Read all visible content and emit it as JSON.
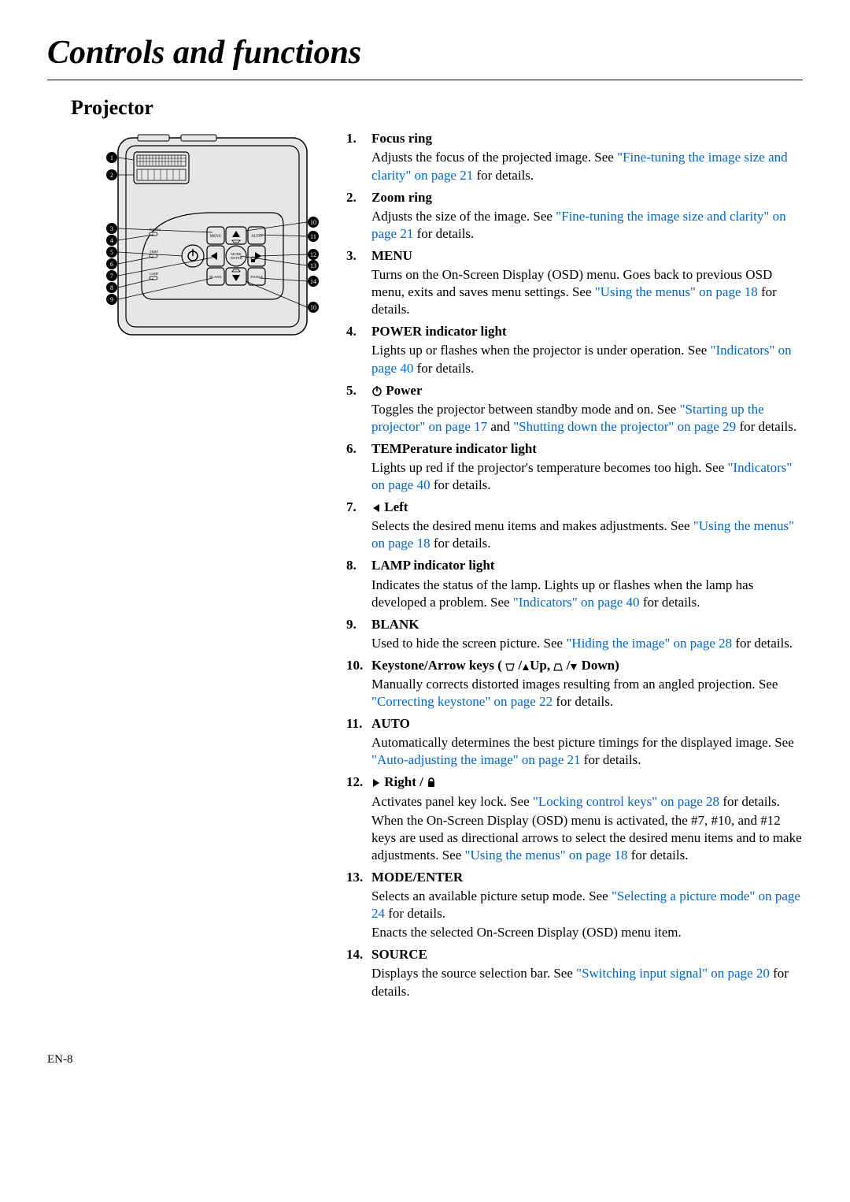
{
  "page_title": "Controls and functions",
  "subtitle": "Projector",
  "footer": "EN-8",
  "link_color": "#0066cc",
  "items": [
    {
      "num": "1",
      "title": "Focus ring",
      "body_parts": [
        {
          "t": "Adjusts the focus of the projected image. See "
        },
        {
          "t": "\"Fine-tuning the image size and clarity\" on page 21",
          "link": true
        },
        {
          "t": " for details."
        }
      ]
    },
    {
      "num": "2",
      "title": "Zoom ring",
      "body_parts": [
        {
          "t": "Adjusts the size of the image. See "
        },
        {
          "t": "\"Fine-tuning the image size and clarity\" on page 21",
          "link": true
        },
        {
          "t": " for details."
        }
      ]
    },
    {
      "num": "3",
      "title": "MENU",
      "body_parts": [
        {
          "t": "Turns on the On-Screen Display (OSD) menu. Goes back to previous OSD menu, exits and saves menu settings. See "
        },
        {
          "t": "\"Using the menus\" on page 18",
          "link": true
        },
        {
          "t": " for details."
        }
      ]
    },
    {
      "num": "4",
      "title": "POWER indicator light",
      "body_parts": [
        {
          "t": "Lights up or flashes when the projector is under operation. See "
        },
        {
          "t": "\"Indicators\" on page 40",
          "link": true
        },
        {
          "t": " for details."
        }
      ]
    },
    {
      "num": "5",
      "title_icon": "power",
      "title": "Power",
      "body_parts": [
        {
          "t": "Toggles the projector between standby mode and on. See "
        },
        {
          "t": "\"Starting up the projector\" on page 17",
          "link": true
        },
        {
          "t": " and "
        },
        {
          "t": "\"Shutting down the projector\" on page 29",
          "link": true
        },
        {
          "t": " for details."
        }
      ]
    },
    {
      "num": "6",
      "title": "TEMPerature indicator light",
      "body_parts": [
        {
          "t": "Lights up red if the projector's temperature becomes too high. See "
        },
        {
          "t": "\"Indicators\" on page 40",
          "link": true
        },
        {
          "t": " for details."
        }
      ]
    },
    {
      "num": "7",
      "title_icon": "left",
      "title": "Left",
      "body_parts": [
        {
          "t": "Selects the desired menu items and makes adjustments. See "
        },
        {
          "t": "\"Using the menus\" on page 18",
          "link": true
        },
        {
          "t": " for details."
        }
      ]
    },
    {
      "num": "8",
      "title": "LAMP indicator light",
      "body_parts": [
        {
          "t": "Indicates the status of the lamp. Lights up or flashes when the lamp has developed a problem. See "
        },
        {
          "t": "\"Indicators\" on page 40",
          "link": true
        },
        {
          "t": " for details."
        }
      ]
    },
    {
      "num": "9",
      "title": "BLANK",
      "body_parts": [
        {
          "t": "Used to hide the screen picture. See "
        },
        {
          "t": "\"Hiding the image\" on page 28",
          "link": true
        },
        {
          "t": " for details."
        }
      ]
    },
    {
      "num": "10",
      "title_icon": "keystone",
      "title": "Keystone/Arrow keys (",
      "title_trail": "Up,  ",
      "title_trail2": "Down)",
      "body_parts": [
        {
          "t": "Manually corrects distorted images resulting from an angled projection. See "
        },
        {
          "t": "\"Correcting keystone\" on page 22",
          "link": true
        },
        {
          "t": " for details."
        }
      ]
    },
    {
      "num": "11",
      "title": "AUTO",
      "body_parts": [
        {
          "t": "Automatically determines the best picture timings for the displayed image. See "
        },
        {
          "t": "\"Auto-adjusting the image\" on page 21",
          "link": true
        },
        {
          "t": " for details."
        }
      ]
    },
    {
      "num": "12",
      "title_icon": "right_lock",
      "title": "Right / ",
      "body_parts": [
        {
          "t": "Activates panel key lock. See "
        },
        {
          "t": "\"Locking control keys\" on page 28",
          "link": true
        },
        {
          "t": " for details."
        }
      ],
      "body2_parts": [
        {
          "t": "When the On-Screen Display (OSD) menu is activated, the #7, #10, and #12 keys are used as directional arrows to select the desired menu items and to make adjustments. See "
        },
        {
          "t": "\"Using the menus\" on page 18",
          "link": true
        },
        {
          "t": " for details."
        }
      ]
    },
    {
      "num": "13",
      "title": "MODE/ENTER",
      "body_parts": [
        {
          "t": "Selects an available picture setup mode. See "
        },
        {
          "t": "\"Selecting a picture mode\" on page 24",
          "link": true
        },
        {
          "t": " for details."
        }
      ],
      "body2_parts": [
        {
          "t": "Enacts the selected On-Screen Display (OSD) menu item."
        }
      ]
    },
    {
      "num": "14",
      "title": "SOURCE",
      "body_parts": [
        {
          "t": "Displays the source selection bar. See "
        },
        {
          "t": "\"Switching input signal\" on page 20",
          "link": true
        },
        {
          "t": " for details."
        }
      ]
    }
  ],
  "diagram": {
    "button_labels": [
      "MENU",
      "AUTO",
      "MODE/ENTER",
      "BLANK",
      "SOURCE",
      "POWER",
      "TEMP",
      "LAMP"
    ],
    "callouts_left": [
      "1",
      "2",
      "3",
      "4",
      "5",
      "6",
      "7",
      "8",
      "9"
    ],
    "callouts_right": [
      "10",
      "11",
      "12",
      "13",
      "14",
      "10"
    ],
    "body_fill": "#e6e6e6",
    "button_fill": "#e6e6e6",
    "stroke": "#000000"
  }
}
